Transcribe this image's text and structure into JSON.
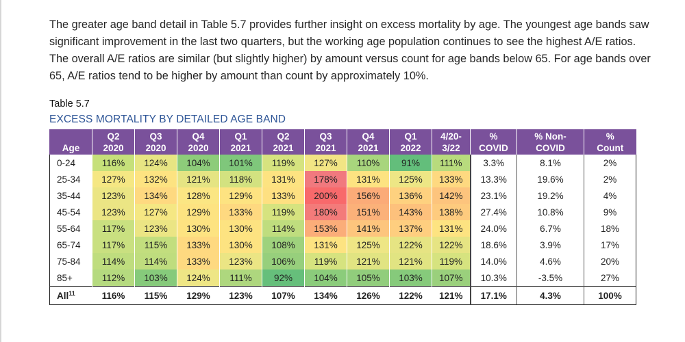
{
  "paragraph": "The greater age band detail in Table 5.7 provides further insight on excess mortality by age. The youngest age bands saw significant improvement in the last two quarters, but the working age population continues to see the highest A/E ratios. The overall A/E ratios are similar (but slightly higher) by amount versus count for age bands below 65. For age bands over 65, A/E ratios tend to be higher by amount than count by approximately 10%.",
  "table_label": "Table 5.7",
  "table_title": "EXCESS MORTALITY BY DETAILED AGE BAND",
  "headers": [
    {
      "top": "",
      "bottom": "Age"
    },
    {
      "top": "Q2",
      "bottom": "2020"
    },
    {
      "top": "Q3",
      "bottom": "2020"
    },
    {
      "top": "Q4",
      "bottom": "2020"
    },
    {
      "top": "Q1",
      "bottom": "2021"
    },
    {
      "top": "Q2",
      "bottom": "2021"
    },
    {
      "top": "Q3",
      "bottom": "2021"
    },
    {
      "top": "Q4",
      "bottom": "2021"
    },
    {
      "top": "Q1",
      "bottom": "2022"
    },
    {
      "top": "4/20-",
      "bottom": "3/22"
    },
    {
      "top": "%",
      "bottom": "COVID"
    },
    {
      "top": "% Non-",
      "bottom": "COVID"
    },
    {
      "top": "%",
      "bottom": "Count"
    }
  ],
  "rows": [
    {
      "age": "0-24",
      "ratios": [
        "116%",
        "124%",
        "104%",
        "101%",
        "119%",
        "127%",
        "110%",
        "91%",
        "111%"
      ],
      "colors": [
        "#c6e07a",
        "#e7e583",
        "#8dcc7a",
        "#7fc77b",
        "#d6e37f",
        "#f2e584",
        "#a8d57d",
        "#63be7b",
        "#b8db7d"
      ],
      "covid": "3.3%",
      "noncovid": "8.1%",
      "count": "2%"
    },
    {
      "age": "25-34",
      "ratios": [
        "127%",
        "132%",
        "121%",
        "118%",
        "131%",
        "178%",
        "131%",
        "125%",
        "133%"
      ],
      "colors": [
        "#f5e783",
        "#fde381",
        "#e5e483",
        "#d3e280",
        "#fde381",
        "#f1797e",
        "#fde381",
        "#ede685",
        "#fed980"
      ],
      "covid": "13.3%",
      "noncovid": "19.6%",
      "count": "2%"
    },
    {
      "age": "35-44",
      "ratios": [
        "123%",
        "134%",
        "128%",
        "129%",
        "133%",
        "200%",
        "156%",
        "136%",
        "142%"
      ],
      "colors": [
        "#ebe584",
        "#fed980",
        "#fbe683",
        "#fde381",
        "#fee081",
        "#f8696b",
        "#fbab78",
        "#fed17f",
        "#fdc47d"
      ],
      "covid": "23.1%",
      "noncovid": "19.2%",
      "count": "4%"
    },
    {
      "age": "45-54",
      "ratios": [
        "123%",
        "127%",
        "129%",
        "133%",
        "119%",
        "180%",
        "151%",
        "143%",
        "138%"
      ],
      "colors": [
        "#ebe584",
        "#f5e783",
        "#fde381",
        "#fed980",
        "#d6e37f",
        "#f37b7a",
        "#fbb179",
        "#fdc17c",
        "#fecb7e"
      ],
      "covid": "27.4%",
      "noncovid": "10.8%",
      "count": "9%"
    },
    {
      "age": "55-64",
      "ratios": [
        "117%",
        "123%",
        "130%",
        "130%",
        "114%",
        "153%",
        "141%",
        "137%",
        "131%"
      ],
      "colors": [
        "#c9e080",
        "#ebe584",
        "#fde381",
        "#fde381",
        "#bfdd7e",
        "#fbad79",
        "#fdc57d",
        "#fece7f",
        "#fde381"
      ],
      "covid": "24.0%",
      "noncovid": "6.7%",
      "count": "18%"
    },
    {
      "age": "65-74",
      "ratios": [
        "117%",
        "115%",
        "133%",
        "130%",
        "108%",
        "131%",
        "125%",
        "122%",
        "122%"
      ],
      "colors": [
        "#c9e080",
        "#c2de7e",
        "#fed980",
        "#fde381",
        "#9fd27d",
        "#fde381",
        "#eee685",
        "#e6e483",
        "#e6e483"
      ],
      "covid": "18.6%",
      "noncovid": "3.9%",
      "count": "17%"
    },
    {
      "age": "75-84",
      "ratios": [
        "114%",
        "114%",
        "133%",
        "123%",
        "106%",
        "119%",
        "121%",
        "121%",
        "119%"
      ],
      "colors": [
        "#bfdd7e",
        "#bfdd7e",
        "#fed980",
        "#ebe584",
        "#97cf7c",
        "#d6e37f",
        "#e1e482",
        "#e1e482",
        "#d6e37f"
      ],
      "covid": "14.0%",
      "noncovid": "4.6%",
      "count": "20%"
    },
    {
      "age": "85+",
      "ratios": [
        "112%",
        "103%",
        "124%",
        "111%",
        "92%",
        "104%",
        "105%",
        "103%",
        "107%"
      ],
      "colors": [
        "#b5da7f",
        "#86ca7b",
        "#eee685",
        "#aed77e",
        "#66bf7b",
        "#8bcc7b",
        "#91cd7c",
        "#86ca7b",
        "#9ad07c"
      ],
      "covid": "10.3%",
      "noncovid": "-3.5%",
      "count": "27%"
    }
  ],
  "total_row": {
    "age": "All",
    "footnote": "11",
    "ratios": [
      "116%",
      "115%",
      "129%",
      "123%",
      "107%",
      "134%",
      "126%",
      "122%",
      "121%"
    ],
    "covid": "17.1%",
    "noncovid": "4.3%",
    "count": "100%"
  }
}
